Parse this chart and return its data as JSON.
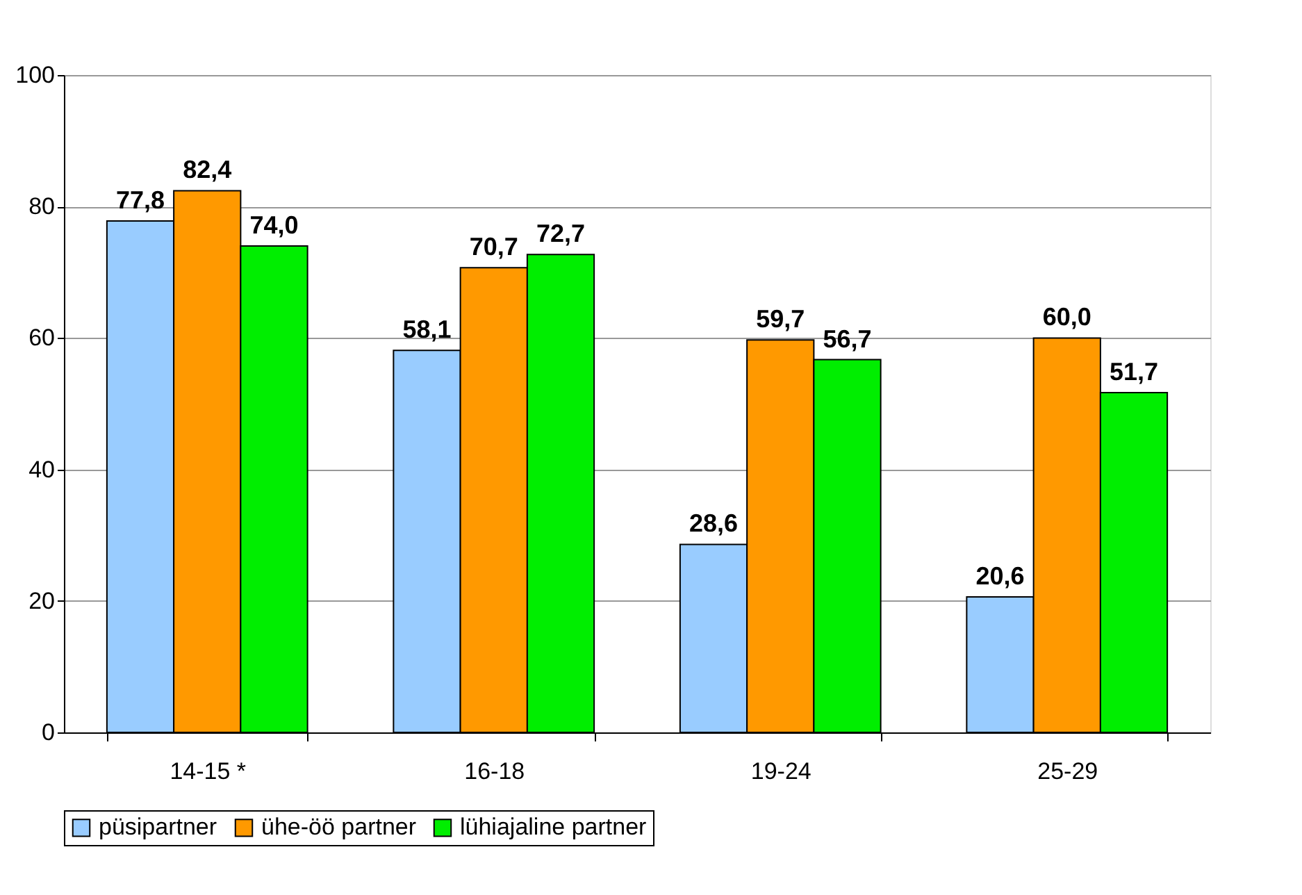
{
  "chart_data": {
    "type": "bar",
    "categories": [
      "14-15 *",
      "16-18",
      "19-24",
      "25-29"
    ],
    "series": [
      {
        "name": "püsipartner",
        "color": "#99ccff",
        "values": [
          77.8,
          58.1,
          28.6,
          20.6
        ],
        "value_labels": [
          "77,8",
          "58,1",
          "28,6",
          "20,6"
        ]
      },
      {
        "name": "ühe-öö partner",
        "color": "#ff9900",
        "values": [
          82.4,
          70.7,
          59.7,
          60.0
        ],
        "value_labels": [
          "82,4",
          "70,7",
          "59,7",
          "60,0"
        ]
      },
      {
        "name": "lühiajaline partner",
        "color": "#00ee00",
        "values": [
          74.0,
          72.7,
          56.7,
          51.7
        ],
        "value_labels": [
          "74,0",
          "72,7",
          "56,7",
          "51,7"
        ]
      }
    ],
    "ylim": [
      0,
      100
    ],
    "yticks": [
      0,
      20,
      40,
      60,
      80,
      100
    ],
    "grid": "y",
    "legend": "bottom"
  }
}
